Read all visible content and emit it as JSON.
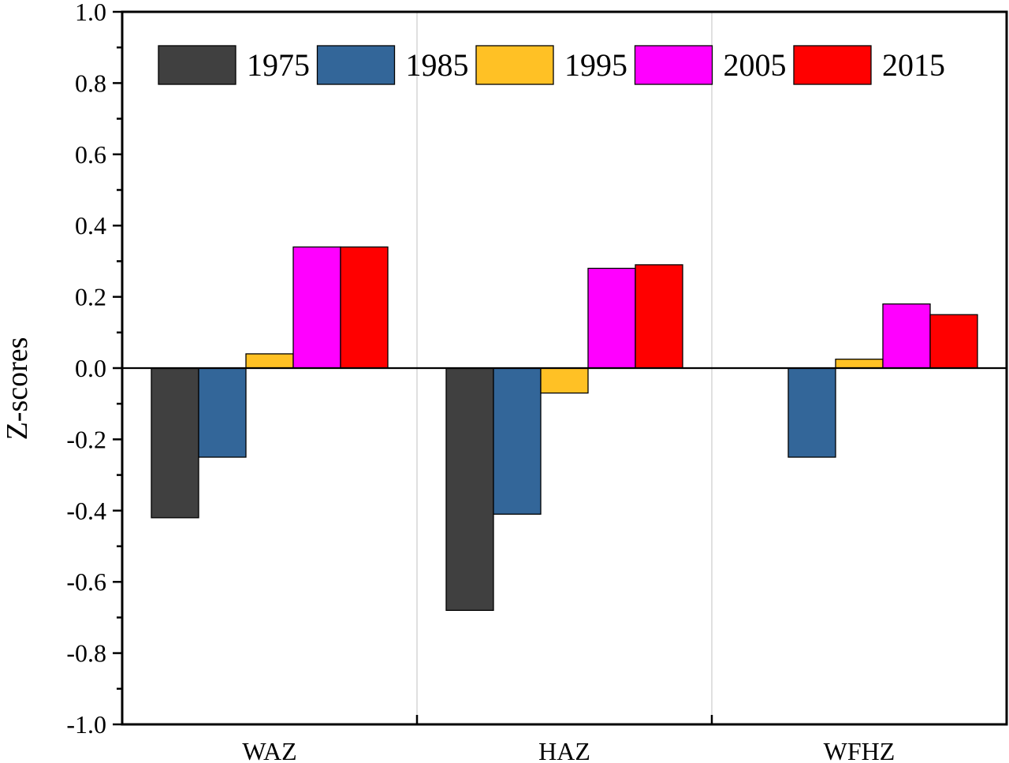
{
  "chart_data": {
    "type": "bar",
    "title": "",
    "xlabel": "",
    "ylabel": "Z-scores",
    "categories": [
      "WAZ",
      "HAZ",
      "WFHZ"
    ],
    "ylim": [
      -1.0,
      1.0
    ],
    "yticks": [
      "-1.0",
      "-0.8",
      "-0.6",
      "-0.4",
      "-0.2",
      "0.0",
      "0.2",
      "0.4",
      "0.6",
      "0.8",
      "1.0"
    ],
    "legend_position": "top",
    "grid": false,
    "series": [
      {
        "name": "1975",
        "color": "#404040",
        "values": [
          -0.42,
          -0.68,
          null
        ]
      },
      {
        "name": "1985",
        "color": "#336699",
        "values": [
          -0.25,
          -0.41,
          -0.25
        ]
      },
      {
        "name": "1995",
        "color": "#FFC125",
        "values": [
          0.04,
          -0.07,
          0.025
        ]
      },
      {
        "name": "2005",
        "color": "#FF00FF",
        "values": [
          0.34,
          0.28,
          0.18
        ]
      },
      {
        "name": "2015",
        "color": "#FF0000",
        "values": [
          0.34,
          0.29,
          0.15
        ]
      }
    ]
  }
}
